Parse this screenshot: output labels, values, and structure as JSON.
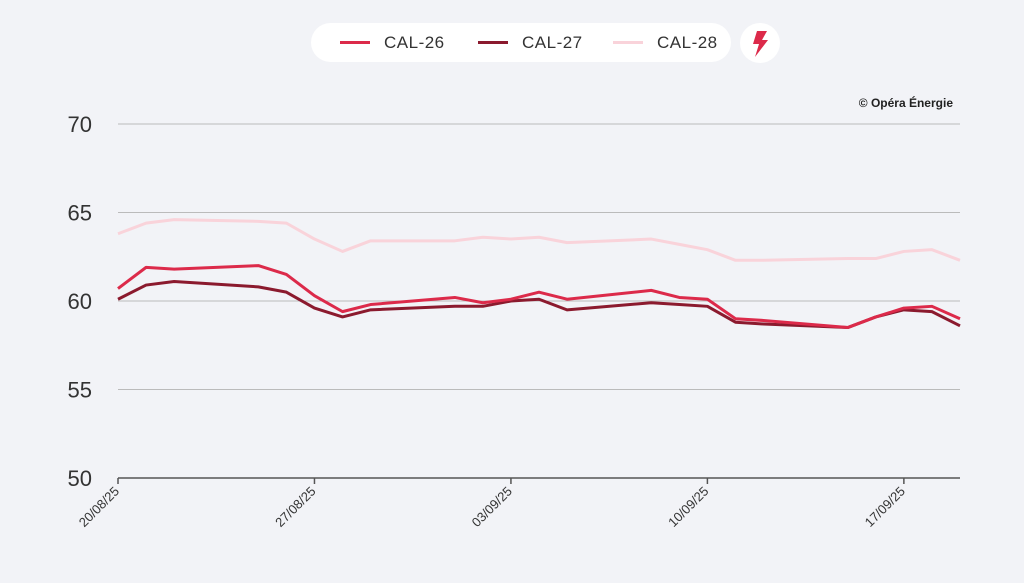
{
  "legend": {
    "items": [
      {
        "label": "CAL-26",
        "color": "#dc2a4a"
      },
      {
        "label": "CAL-27",
        "color": "#8b1a2e"
      },
      {
        "label": "CAL-28",
        "color": "#f9d3da"
      }
    ],
    "icon": "lightning-bolt-icon"
  },
  "copyright": "© Opéra Énergie",
  "chart_data": {
    "type": "line",
    "title": "",
    "xlabel": "",
    "ylabel": "",
    "ylim": [
      50,
      70
    ],
    "yticks": [
      50,
      55,
      60,
      65,
      70
    ],
    "xticks": [
      "20/08/25",
      "27/08/25",
      "03/09/25",
      "10/09/25",
      "17/09/25"
    ],
    "xtick_day_offsets": [
      0,
      7,
      14,
      21,
      28
    ],
    "x_range_days": [
      0,
      30
    ],
    "grid": true,
    "legend_position": "top-center",
    "x_day_offsets": [
      0,
      1,
      2,
      5,
      6,
      7,
      8,
      9,
      12,
      13,
      14,
      15,
      16,
      19,
      20,
      21,
      22,
      23,
      26,
      27,
      28,
      29,
      30
    ],
    "series": [
      {
        "name": "CAL-26",
        "values": [
          60.7,
          61.9,
          61.8,
          62.0,
          61.5,
          60.3,
          59.4,
          59.8,
          60.2,
          59.9,
          60.1,
          60.5,
          60.1,
          60.6,
          60.2,
          60.1,
          59.0,
          58.9,
          58.5,
          59.1,
          59.6,
          59.7,
          59.0
        ]
      },
      {
        "name": "CAL-27",
        "values": [
          60.1,
          60.9,
          61.1,
          60.8,
          60.5,
          59.6,
          59.1,
          59.5,
          59.7,
          59.7,
          60.0,
          60.1,
          59.5,
          59.9,
          59.8,
          59.7,
          58.8,
          58.7,
          58.5,
          59.1,
          59.5,
          59.4,
          58.6
        ]
      },
      {
        "name": "CAL-28",
        "values": [
          63.8,
          64.4,
          64.6,
          64.5,
          64.4,
          63.5,
          62.8,
          63.4,
          63.4,
          63.6,
          63.5,
          63.6,
          63.3,
          63.5,
          63.2,
          62.9,
          62.3,
          62.3,
          62.4,
          62.4,
          62.8,
          62.9,
          62.3
        ]
      }
    ]
  }
}
